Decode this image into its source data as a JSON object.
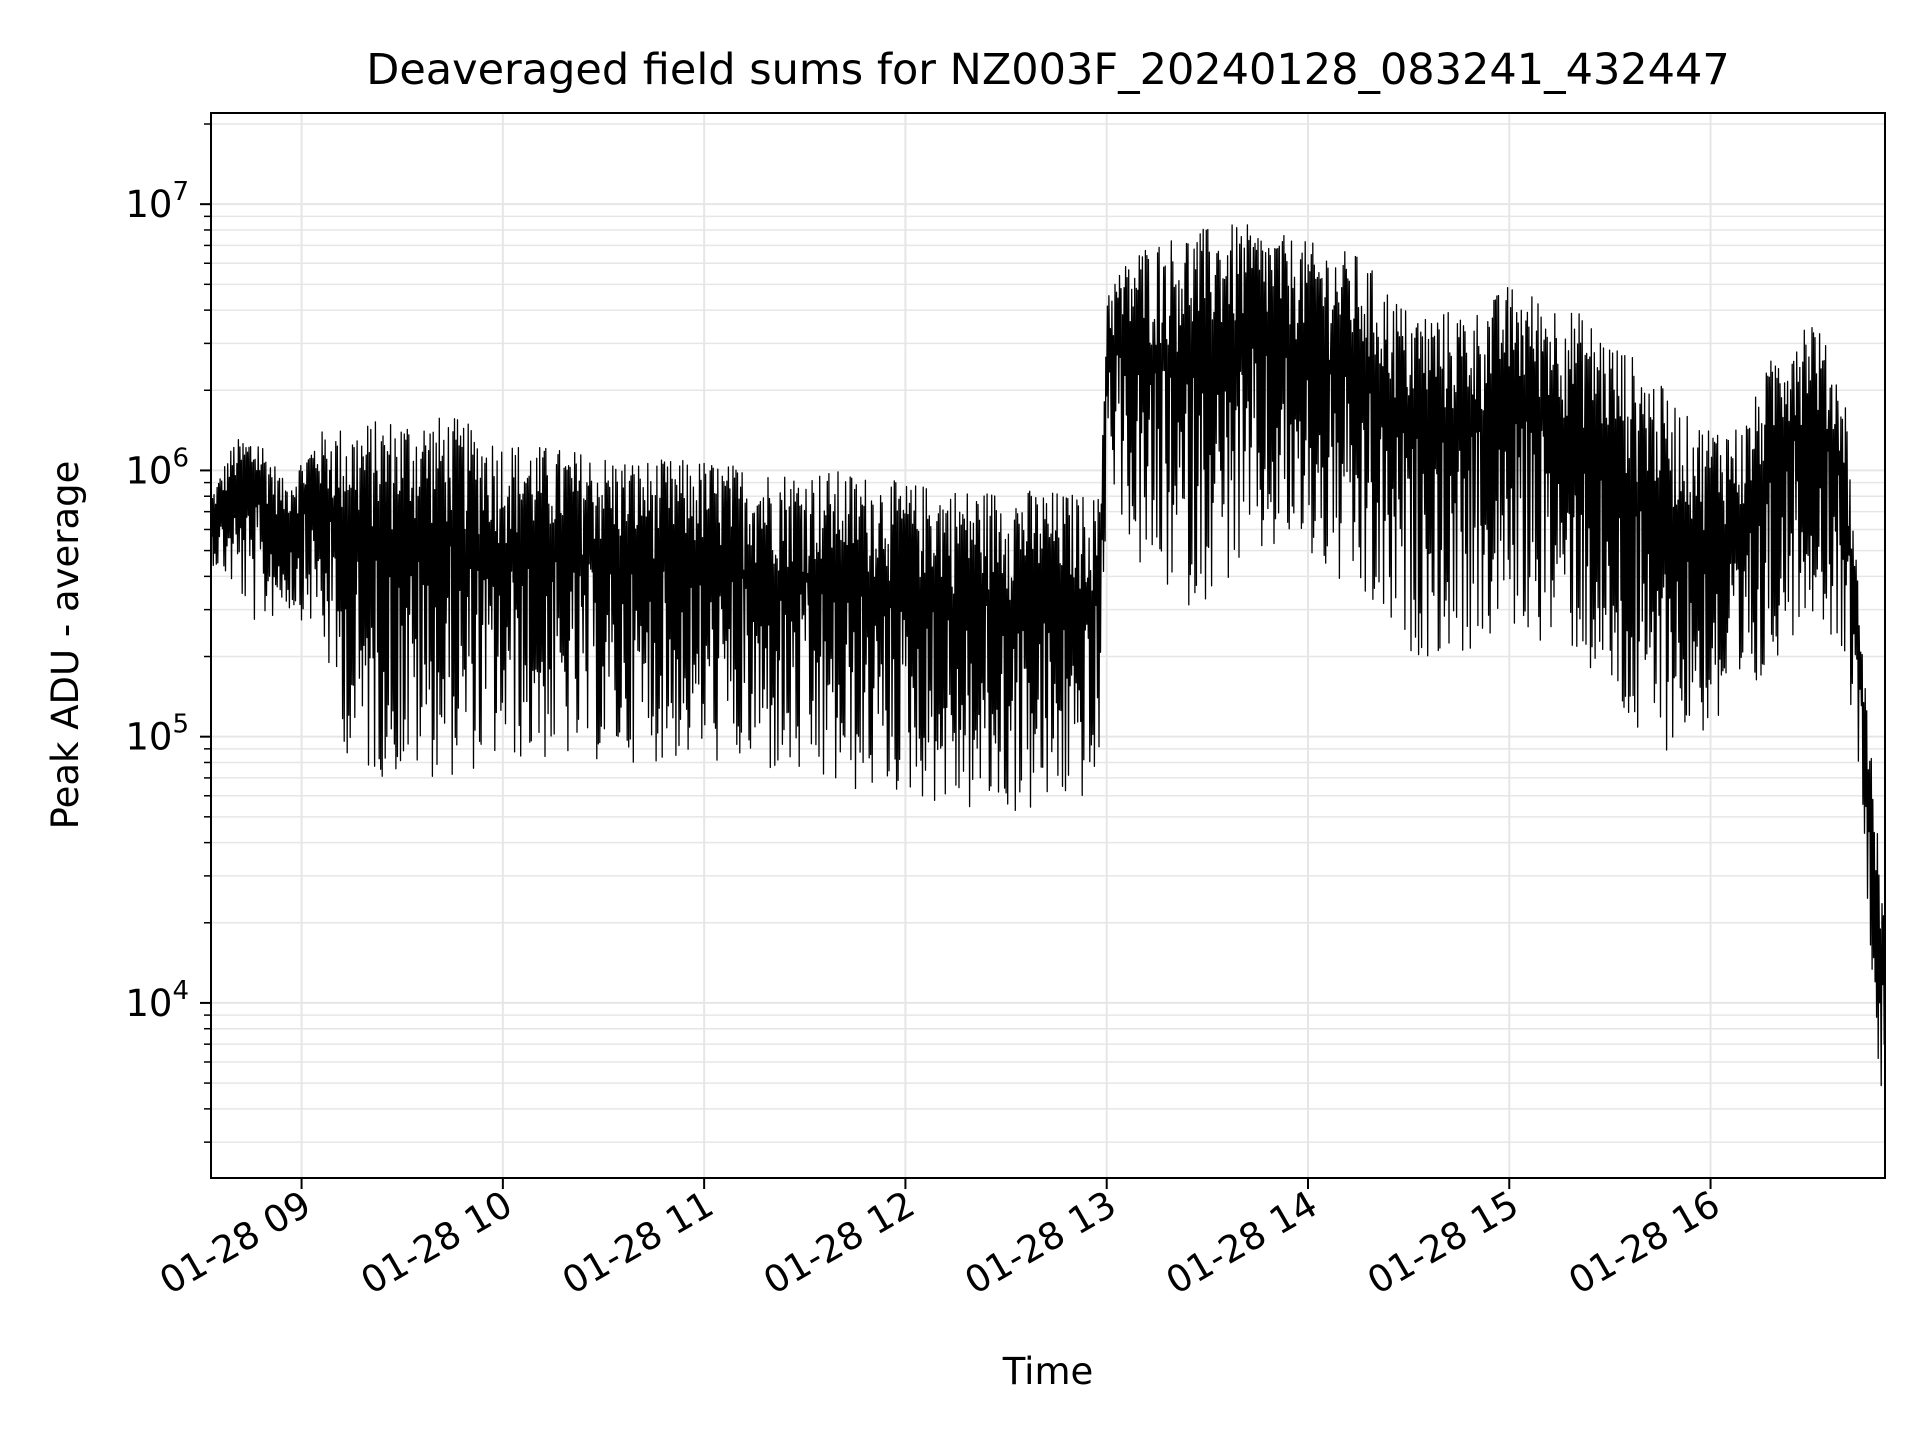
{
  "chart_data": {
    "type": "line",
    "title": "Deaveraged field sums for NZ003F_20240128_083241_432447",
    "xlabel": "Time",
    "ylabel": "Peak ADU - average",
    "yscale": "log",
    "ylim": [
      2200,
      22000000
    ],
    "xlim": [
      "2024-01-28 08:33",
      "2024-01-28 16:52"
    ],
    "x_ticks": [
      {
        "time": "2024-01-28 09:00",
        "label": "01-28 09"
      },
      {
        "time": "2024-01-28 10:00",
        "label": "01-28 10"
      },
      {
        "time": "2024-01-28 11:00",
        "label": "01-28 11"
      },
      {
        "time": "2024-01-28 12:00",
        "label": "01-28 12"
      },
      {
        "time": "2024-01-28 13:00",
        "label": "01-28 13"
      },
      {
        "time": "2024-01-28 14:00",
        "label": "01-28 14"
      },
      {
        "time": "2024-01-28 15:00",
        "label": "01-28 15"
      },
      {
        "time": "2024-01-28 16:00",
        "label": "01-28 16"
      }
    ],
    "y_ticks": [
      {
        "value": 10000,
        "base": "10",
        "exp": "4"
      },
      {
        "value": 100000,
        "base": "10",
        "exp": "5"
      },
      {
        "value": 1000000,
        "base": "10",
        "exp": "6"
      },
      {
        "value": 10000000,
        "base": "10",
        "exp": "7"
      }
    ],
    "grid": true,
    "line_color": "#000000",
    "grid_color": "#e6e6e6",
    "series": [
      {
        "x": [
          "2024-01-28 08:33",
          "2024-01-28 08:40",
          "2024-01-28 08:47",
          "2024-01-28 08:55",
          "2024-01-28 09:05",
          "2024-01-28 09:15",
          "2024-01-28 09:30",
          "2024-01-28 09:45",
          "2024-01-28 10:00",
          "2024-01-28 10:20",
          "2024-01-28 10:40",
          "2024-01-28 11:00",
          "2024-01-28 11:20",
          "2024-01-28 11:40",
          "2024-01-28 12:00",
          "2024-01-28 12:20",
          "2024-01-28 12:40",
          "2024-01-28 12:58",
          "2024-01-28 13:00",
          "2024-01-28 13:10",
          "2024-01-28 13:25",
          "2024-01-28 13:40",
          "2024-01-28 13:55",
          "2024-01-28 14:15",
          "2024-01-28 14:30",
          "2024-01-28 14:50",
          "2024-01-28 15:00",
          "2024-01-28 15:20",
          "2024-01-28 15:40",
          "2024-01-28 15:55",
          "2024-01-28 16:10",
          "2024-01-28 16:20",
          "2024-01-28 16:30",
          "2024-01-28 16:40",
          "2024-01-28 16:45",
          "2024-01-28 16:50",
          "2024-01-28 16:52"
        ],
        "high": [
          800000,
          1300000,
          1400000,
          900000,
          1400000,
          1500000,
          1600000,
          1600000,
          1300000,
          1200000,
          1100000,
          1100000,
          1000000,
          1000000,
          900000,
          850000,
          850000,
          800000,
          5000000,
          7000000,
          8000000,
          8500000,
          7500000,
          6500000,
          4000000,
          4000000,
          5000000,
          4000000,
          2500000,
          1500000,
          1500000,
          3000000,
          4000000,
          2000000,
          250000,
          40000,
          20000
        ],
        "low": [
          450000,
          350000,
          250000,
          300000,
          250000,
          70000,
          70000,
          70000,
          80000,
          80000,
          80000,
          80000,
          70000,
          60000,
          60000,
          50000,
          50000,
          60000,
          1000000,
          400000,
          300000,
          400000,
          500000,
          300000,
          200000,
          200000,
          250000,
          200000,
          80000,
          100000,
          100000,
          200000,
          300000,
          200000,
          60000,
          5000,
          3500
        ]
      }
    ]
  }
}
